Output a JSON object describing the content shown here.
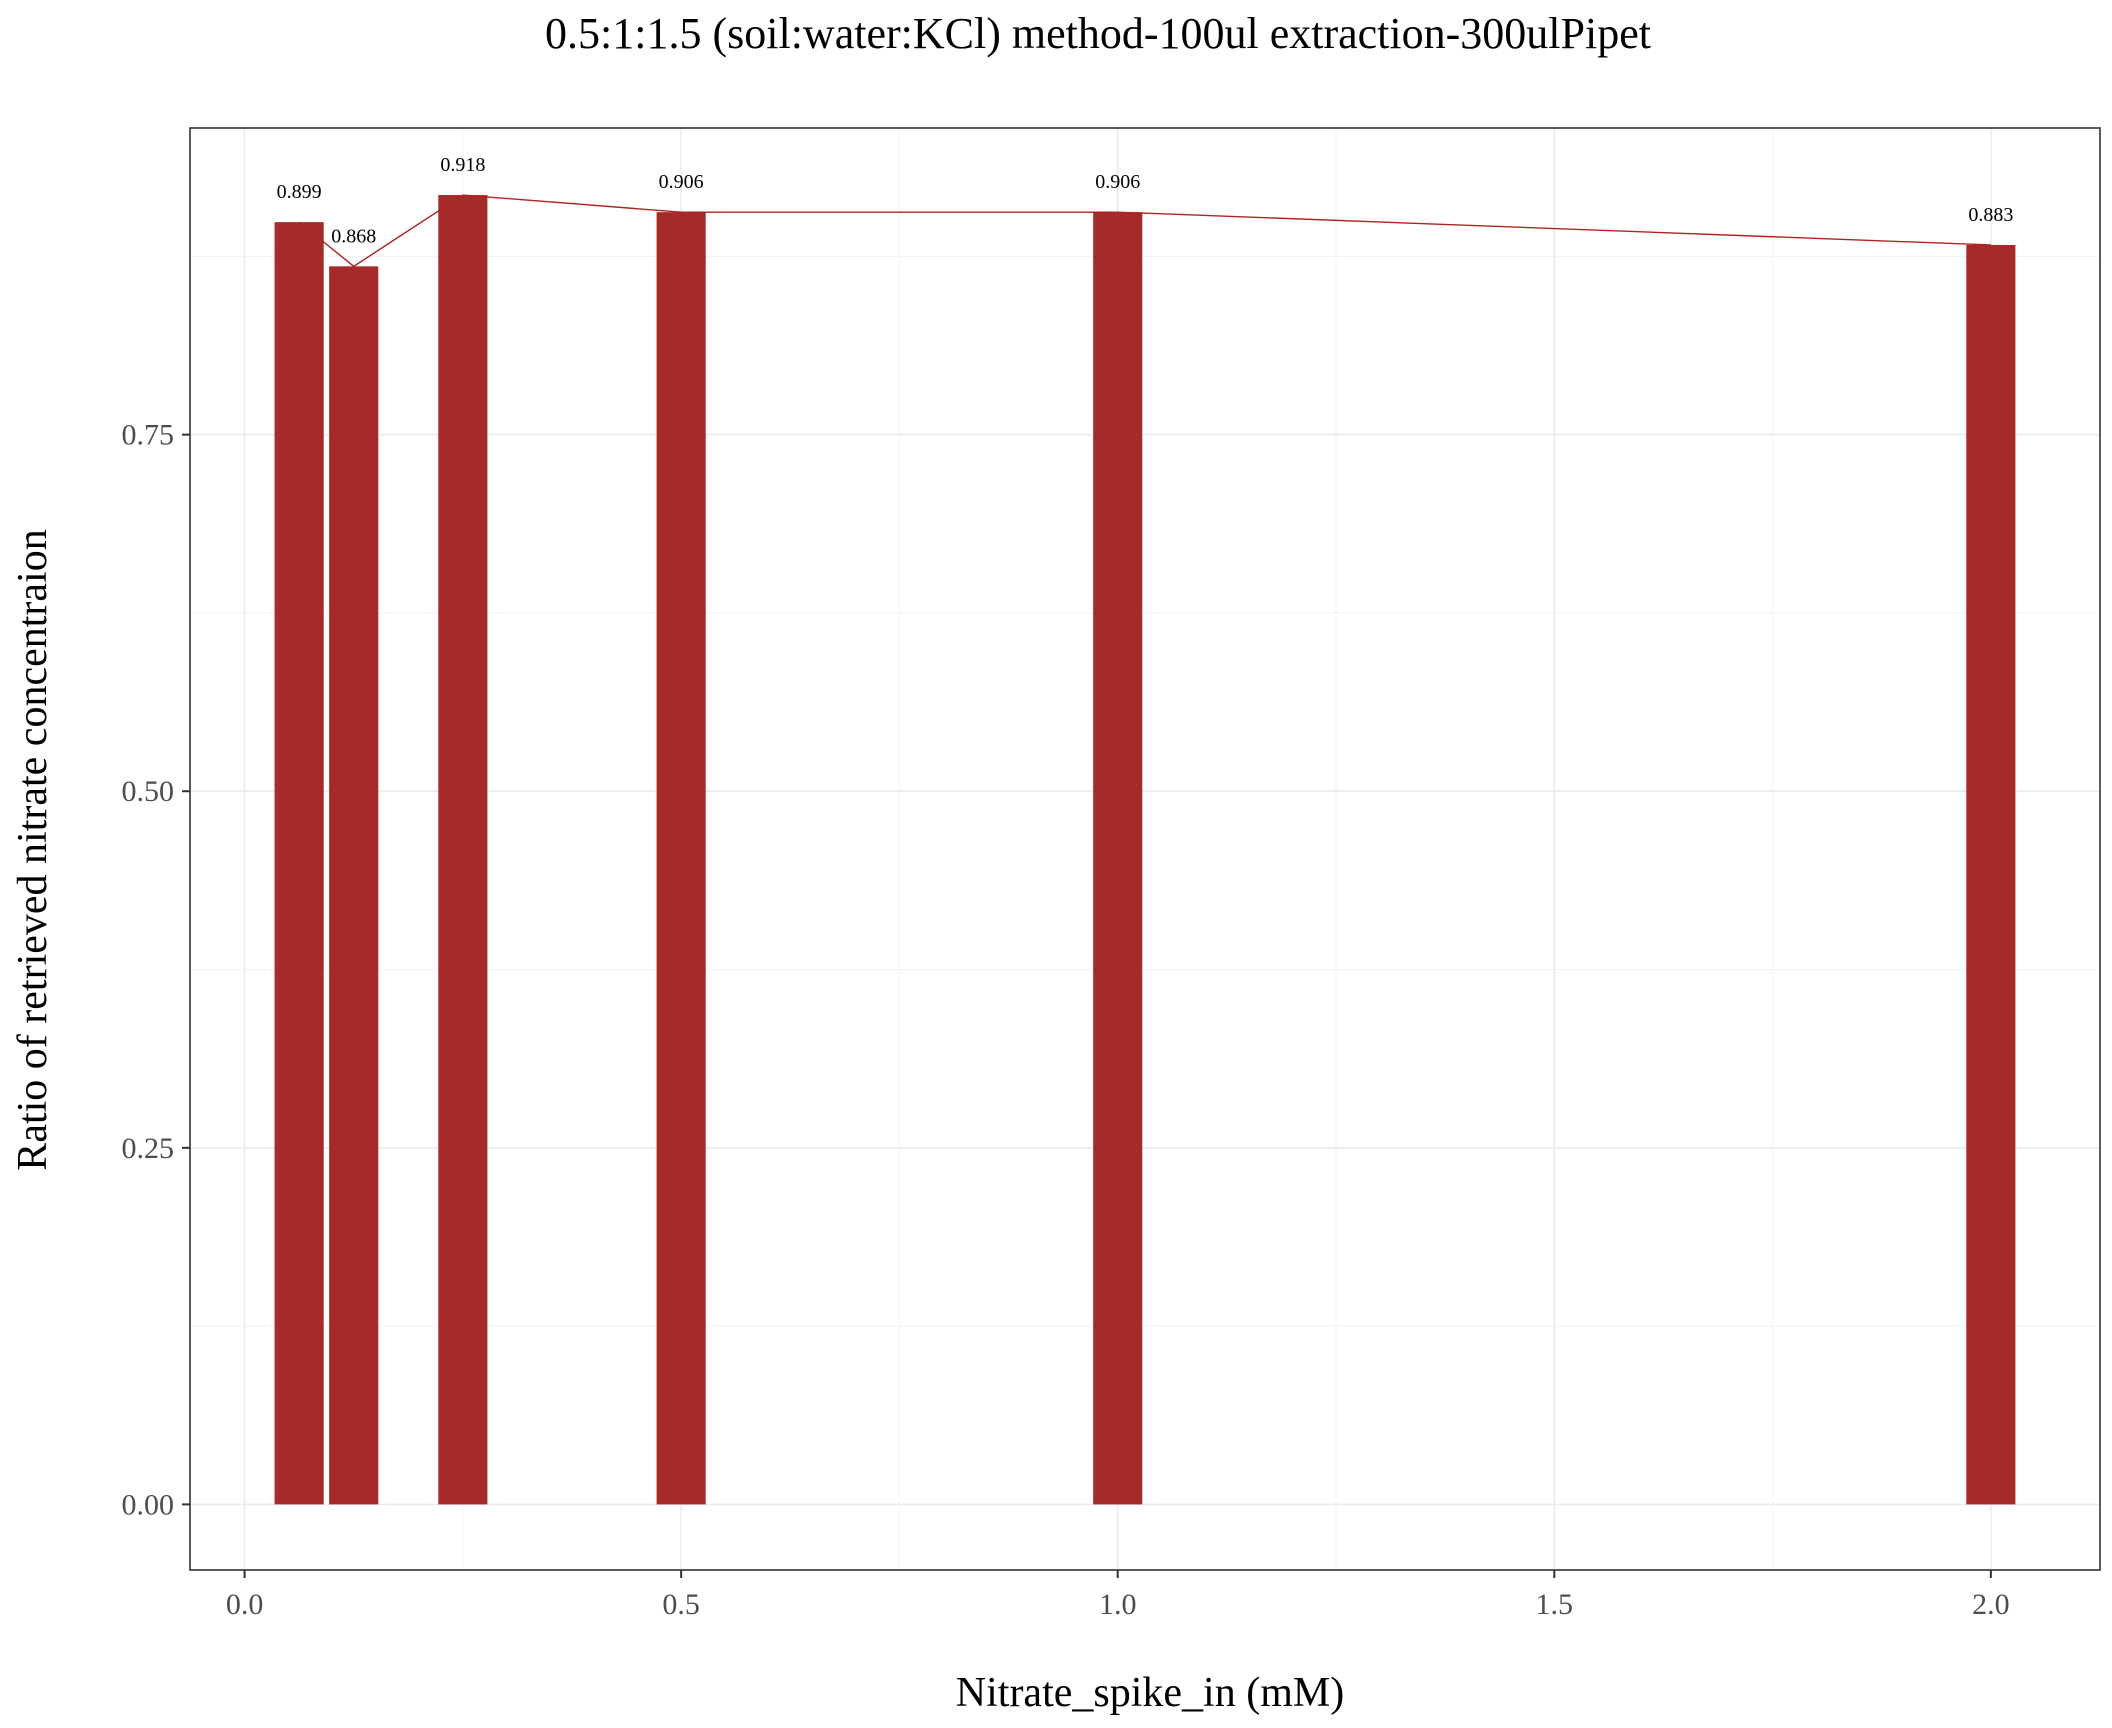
{
  "chart_data": {
    "type": "bar",
    "title": "0.5:1:1.5 (soil:water:KCl) method-100ul extraction-300ulPipet",
    "xlabel": "Nitrate_spike_in (mM)",
    "ylabel": "Ratio of retrieved nitrate concentraion",
    "x": [
      0.0625,
      0.125,
      0.25,
      0.5,
      1.0,
      2.0
    ],
    "values": [
      0.899,
      0.868,
      0.918,
      0.906,
      0.906,
      0.883
    ],
    "data_labels": [
      "0.899",
      "0.868",
      "0.918",
      "0.906",
      "0.906",
      "0.883"
    ],
    "xlim": [
      -0.0625,
      2.125
    ],
    "ylim": [
      -0.046,
      0.965
    ],
    "x_ticks": [
      0.0,
      0.5,
      1.0,
      1.5,
      2.0
    ],
    "x_tick_labels": [
      "0.0",
      "0.5",
      "1.0",
      "1.5",
      "2.0"
    ],
    "y_ticks": [
      0.0,
      0.25,
      0.5,
      0.75
    ],
    "y_tick_labels": [
      "0.00",
      "0.25",
      "0.50",
      "0.75"
    ],
    "bar_color": "#a52a2a",
    "line_color": "#b22222",
    "connecting_line": true,
    "grid": true,
    "legend": "none"
  }
}
